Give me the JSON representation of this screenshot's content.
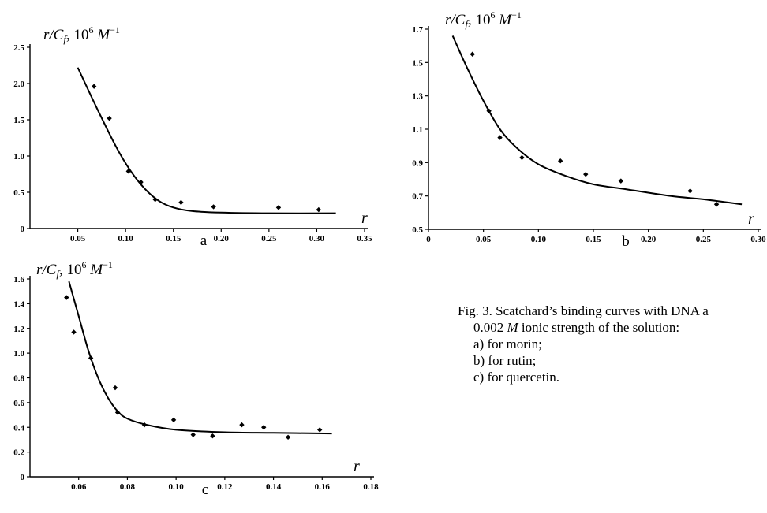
{
  "chart_data": [
    {
      "id": "a",
      "type": "scatter",
      "panel_label": "a",
      "ylabel": {
        "main": "r/C",
        "sub": "f",
        "unit": ", 10",
        "sup": "6",
        "tail": " M",
        "tailsup": "−1"
      },
      "xlabel": "r",
      "xlim": [
        0,
        0.35
      ],
      "ylim": [
        0,
        2.5
      ],
      "xticks": [
        "0.05",
        "0.10",
        "0.15",
        "0.20",
        "0.25",
        "0.30",
        "0.35"
      ],
      "xtick_values": [
        0.05,
        0.1,
        0.15,
        0.2,
        0.25,
        0.3,
        0.35
      ],
      "yticks": [
        "0",
        "0.5",
        "1.0",
        "1.5",
        "2.0",
        "2.5"
      ],
      "ytick_values": [
        0,
        0.5,
        1.0,
        1.5,
        2.0,
        2.5
      ],
      "points": [
        [
          0.067,
          1.96
        ],
        [
          0.083,
          1.52
        ],
        [
          0.103,
          0.79
        ],
        [
          0.116,
          0.64
        ],
        [
          0.131,
          0.4
        ],
        [
          0.158,
          0.36
        ],
        [
          0.192,
          0.3
        ],
        [
          0.26,
          0.29
        ],
        [
          0.302,
          0.26
        ]
      ],
      "curve": [
        [
          0.05,
          2.22
        ],
        [
          0.07,
          1.66
        ],
        [
          0.09,
          1.13
        ],
        [
          0.105,
          0.8
        ],
        [
          0.12,
          0.55
        ],
        [
          0.135,
          0.38
        ],
        [
          0.15,
          0.29
        ],
        [
          0.17,
          0.24
        ],
        [
          0.2,
          0.22
        ],
        [
          0.25,
          0.21
        ],
        [
          0.32,
          0.21
        ]
      ]
    },
    {
      "id": "b",
      "type": "scatter",
      "panel_label": "b",
      "ylabel": {
        "main": "r/C",
        "sub": "f",
        "unit": ", 10",
        "sup": "6",
        "tail": " M",
        "tailsup": "−1"
      },
      "xlabel": "r",
      "xlim": [
        0,
        0.3
      ],
      "ylim": [
        0.5,
        1.7
      ],
      "xticks": [
        "0",
        "0.05",
        "0.10",
        "0.15",
        "0.20",
        "0.25",
        "0.30"
      ],
      "xtick_values": [
        0,
        0.05,
        0.1,
        0.15,
        0.2,
        0.25,
        0.3
      ],
      "yticks": [
        "0.5",
        "0.7",
        "0.9",
        "1.1",
        "1.3",
        "1.5",
        "1.7"
      ],
      "ytick_values": [
        0.5,
        0.7,
        0.9,
        1.1,
        1.3,
        1.5,
        1.7
      ],
      "points": [
        [
          0.04,
          1.55
        ],
        [
          0.055,
          1.21
        ],
        [
          0.065,
          1.05
        ],
        [
          0.085,
          0.93
        ],
        [
          0.12,
          0.91
        ],
        [
          0.143,
          0.83
        ],
        [
          0.175,
          0.79
        ],
        [
          0.238,
          0.73
        ],
        [
          0.262,
          0.65
        ]
      ],
      "curve": [
        [
          0.022,
          1.66
        ],
        [
          0.035,
          1.47
        ],
        [
          0.05,
          1.27
        ],
        [
          0.065,
          1.1
        ],
        [
          0.08,
          0.99
        ],
        [
          0.1,
          0.89
        ],
        [
          0.125,
          0.82
        ],
        [
          0.15,
          0.77
        ],
        [
          0.18,
          0.74
        ],
        [
          0.22,
          0.7
        ],
        [
          0.25,
          0.68
        ],
        [
          0.285,
          0.65
        ]
      ]
    },
    {
      "id": "c",
      "type": "scatter",
      "panel_label": "c",
      "ylabel": {
        "main": "r/C",
        "sub": "f",
        "unit": ", 10",
        "sup": "6",
        "tail": " M",
        "tailsup": "−1"
      },
      "xlabel": "r",
      "xlim": [
        0.04,
        0.18
      ],
      "ylim": [
        0,
        1.6
      ],
      "xticks": [
        "0.06",
        "0.08",
        "0.10",
        "0.12",
        "0.14",
        "0.16",
        "0.18"
      ],
      "xtick_values": [
        0.06,
        0.08,
        0.1,
        0.12,
        0.14,
        0.16,
        0.18
      ],
      "yticks": [
        "0",
        "0.2",
        "0.4",
        "0.6",
        "0.8",
        "1.0",
        "1.2",
        "1.4",
        "1.6"
      ],
      "ytick_values": [
        0,
        0.2,
        0.4,
        0.6,
        0.8,
        1.0,
        1.2,
        1.4,
        1.6
      ],
      "points": [
        [
          0.055,
          1.45
        ],
        [
          0.058,
          1.17
        ],
        [
          0.065,
          0.96
        ],
        [
          0.075,
          0.72
        ],
        [
          0.076,
          0.52
        ],
        [
          0.087,
          0.42
        ],
        [
          0.099,
          0.46
        ],
        [
          0.107,
          0.34
        ],
        [
          0.115,
          0.33
        ],
        [
          0.127,
          0.42
        ],
        [
          0.136,
          0.4
        ],
        [
          0.146,
          0.32
        ],
        [
          0.159,
          0.38
        ]
      ],
      "curve": [
        [
          0.056,
          1.58
        ],
        [
          0.06,
          1.3
        ],
        [
          0.064,
          1.02
        ],
        [
          0.068,
          0.8
        ],
        [
          0.072,
          0.64
        ],
        [
          0.076,
          0.53
        ],
        [
          0.08,
          0.47
        ],
        [
          0.088,
          0.42
        ],
        [
          0.1,
          0.38
        ],
        [
          0.12,
          0.36
        ],
        [
          0.14,
          0.355
        ],
        [
          0.164,
          0.35
        ]
      ]
    }
  ],
  "caption": {
    "line1": "Fig. 3. Scatchard’s  binding  curves with DNA a",
    "line2_value": "0.002",
    "line2_unit": "M",
    "line2_rest": " ionic strength of the solution:",
    "items": [
      "a) for morin;",
      "b) for rutin;",
      "c) for quercetin."
    ]
  }
}
